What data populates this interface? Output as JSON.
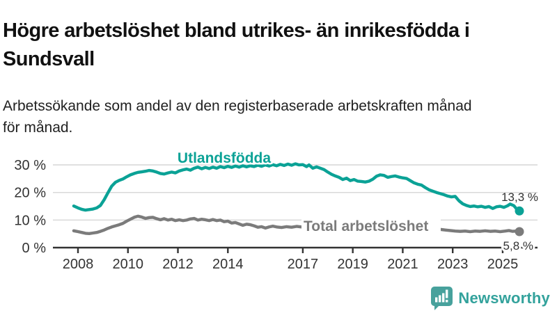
{
  "header": {
    "title": "Högre arbetslöshet bland utrikes- än inrikesfödda i\nSundsvall",
    "subtitle": "Arbetssökande som andel av den registerbaserade arbetskraften månad\nför månad."
  },
  "footer": {
    "brand": "Newsworthy",
    "logo_icon": "bar-chart-speech-bubble-icon"
  },
  "colors": {
    "accent_teal": "#0ba296",
    "series_gray": "#7b7b7b",
    "axis_text": "#333333",
    "gridline": "#d9d9d9",
    "logo_teal": "#47a19c",
    "end_label_text": "#333333"
  },
  "chart_data": {
    "type": "line",
    "grid": "horizontal",
    "legend_position": "inline-labels",
    "xlabel": "",
    "ylabel": "",
    "ylim": [
      0,
      33
    ],
    "xlim": [
      2007.7,
      2026.2
    ],
    "y_ticks": [
      {
        "value": 0,
        "label": "0 %"
      },
      {
        "value": 10,
        "label": "10 %"
      },
      {
        "value": 20,
        "label": "20 %"
      },
      {
        "value": 30,
        "label": "30 %"
      }
    ],
    "x_ticks": [
      {
        "value": 2008,
        "label": "2008"
      },
      {
        "value": 2010,
        "label": "2010"
      },
      {
        "value": 2012,
        "label": "2012"
      },
      {
        "value": 2014,
        "label": "2014"
      },
      {
        "value": 2017,
        "label": "2017"
      },
      {
        "value": 2019,
        "label": "2019"
      },
      {
        "value": 2021,
        "label": "2021"
      },
      {
        "value": 2023,
        "label": "2023"
      },
      {
        "value": 2025,
        "label": "2025"
      }
    ],
    "series": [
      {
        "name": "Utlandsfödda",
        "color": "#0ba296",
        "end_label": "13,3 %",
        "end_value": 13.3,
        "points": [
          [
            2007.83,
            15.1
          ],
          [
            2008.0,
            14.4
          ],
          [
            2008.15,
            13.9
          ],
          [
            2008.3,
            13.6
          ],
          [
            2008.45,
            13.8
          ],
          [
            2008.6,
            14.0
          ],
          [
            2008.75,
            14.4
          ],
          [
            2008.9,
            15.3
          ],
          [
            2009.05,
            17.4
          ],
          [
            2009.2,
            19.9
          ],
          [
            2009.35,
            22.3
          ],
          [
            2009.5,
            23.7
          ],
          [
            2009.65,
            24.4
          ],
          [
            2009.8,
            24.9
          ],
          [
            2009.95,
            25.7
          ],
          [
            2010.1,
            26.4
          ],
          [
            2010.25,
            26.9
          ],
          [
            2010.4,
            27.3
          ],
          [
            2010.55,
            27.5
          ],
          [
            2010.7,
            27.7
          ],
          [
            2010.85,
            28.0
          ],
          [
            2011.0,
            27.8
          ],
          [
            2011.15,
            27.4
          ],
          [
            2011.3,
            26.9
          ],
          [
            2011.45,
            26.7
          ],
          [
            2011.6,
            27.1
          ],
          [
            2011.75,
            27.4
          ],
          [
            2011.9,
            27.1
          ],
          [
            2012.05,
            27.8
          ],
          [
            2012.2,
            28.2
          ],
          [
            2012.35,
            28.5
          ],
          [
            2012.5,
            28.1
          ],
          [
            2012.65,
            28.8
          ],
          [
            2012.8,
            29.2
          ],
          [
            2012.95,
            28.6
          ],
          [
            2013.1,
            29.1
          ],
          [
            2013.25,
            28.7
          ],
          [
            2013.4,
            29.2
          ],
          [
            2013.55,
            28.8
          ],
          [
            2013.7,
            29.4
          ],
          [
            2013.85,
            29.0
          ],
          [
            2014.0,
            29.5
          ],
          [
            2014.15,
            29.1
          ],
          [
            2014.3,
            29.6
          ],
          [
            2014.45,
            29.2
          ],
          [
            2014.6,
            29.7
          ],
          [
            2014.75,
            29.3
          ],
          [
            2014.9,
            29.7
          ],
          [
            2015.05,
            29.4
          ],
          [
            2015.2,
            29.9
          ],
          [
            2015.35,
            29.5
          ],
          [
            2015.5,
            30.0
          ],
          [
            2015.65,
            29.6
          ],
          [
            2015.8,
            30.1
          ],
          [
            2015.95,
            29.7
          ],
          [
            2016.1,
            30.2
          ],
          [
            2016.25,
            29.8
          ],
          [
            2016.4,
            30.3
          ],
          [
            2016.55,
            29.9
          ],
          [
            2016.7,
            30.4
          ],
          [
            2016.85,
            30.0
          ],
          [
            2017.0,
            30.1
          ],
          [
            2017.15,
            29.4
          ],
          [
            2017.25,
            30.0
          ],
          [
            2017.4,
            28.8
          ],
          [
            2017.55,
            29.3
          ],
          [
            2017.7,
            28.8
          ],
          [
            2017.85,
            28.3
          ],
          [
            2018.0,
            27.4
          ],
          [
            2018.15,
            26.6
          ],
          [
            2018.3,
            26.0
          ],
          [
            2018.45,
            25.5
          ],
          [
            2018.6,
            24.7
          ],
          [
            2018.75,
            25.2
          ],
          [
            2018.9,
            24.3
          ],
          [
            2019.05,
            24.7
          ],
          [
            2019.2,
            24.1
          ],
          [
            2019.35,
            24.0
          ],
          [
            2019.5,
            23.8
          ],
          [
            2019.65,
            24.1
          ],
          [
            2019.8,
            24.8
          ],
          [
            2019.95,
            25.9
          ],
          [
            2020.1,
            26.4
          ],
          [
            2020.25,
            26.2
          ],
          [
            2020.4,
            25.5
          ],
          [
            2020.55,
            25.8
          ],
          [
            2020.7,
            26.0
          ],
          [
            2020.85,
            25.6
          ],
          [
            2021.0,
            25.3
          ],
          [
            2021.15,
            25.1
          ],
          [
            2021.3,
            24.3
          ],
          [
            2021.45,
            23.5
          ],
          [
            2021.6,
            23.0
          ],
          [
            2021.75,
            22.7
          ],
          [
            2021.9,
            21.8
          ],
          [
            2022.05,
            21.0
          ],
          [
            2022.2,
            20.5
          ],
          [
            2022.35,
            20.0
          ],
          [
            2022.5,
            19.6
          ],
          [
            2022.65,
            19.2
          ],
          [
            2022.8,
            18.7
          ],
          [
            2022.95,
            18.4
          ],
          [
            2023.1,
            18.6
          ],
          [
            2023.25,
            17.0
          ],
          [
            2023.4,
            15.9
          ],
          [
            2023.55,
            15.3
          ],
          [
            2023.7,
            14.9
          ],
          [
            2023.85,
            15.1
          ],
          [
            2024.0,
            14.8
          ],
          [
            2024.15,
            15.0
          ],
          [
            2024.3,
            14.6
          ],
          [
            2024.45,
            14.9
          ],
          [
            2024.6,
            14.2
          ],
          [
            2024.75,
            14.8
          ],
          [
            2024.9,
            15.0
          ],
          [
            2025.05,
            14.6
          ],
          [
            2025.2,
            15.2
          ],
          [
            2025.3,
            15.8
          ],
          [
            2025.45,
            15.2
          ],
          [
            2025.55,
            14.1
          ],
          [
            2025.67,
            13.3
          ]
        ]
      },
      {
        "name": "Total arbetslöshet",
        "color": "#7b7b7b",
        "end_label": "5,8 %",
        "end_value": 5.8,
        "points": [
          [
            2007.83,
            6.1
          ],
          [
            2008.0,
            5.8
          ],
          [
            2008.15,
            5.5
          ],
          [
            2008.3,
            5.2
          ],
          [
            2008.45,
            5.1
          ],
          [
            2008.6,
            5.3
          ],
          [
            2008.75,
            5.5
          ],
          [
            2008.9,
            5.9
          ],
          [
            2009.05,
            6.4
          ],
          [
            2009.2,
            7.0
          ],
          [
            2009.35,
            7.5
          ],
          [
            2009.5,
            7.9
          ],
          [
            2009.65,
            8.3
          ],
          [
            2009.8,
            8.8
          ],
          [
            2009.95,
            9.6
          ],
          [
            2010.1,
            10.3
          ],
          [
            2010.25,
            11.0
          ],
          [
            2010.4,
            11.4
          ],
          [
            2010.55,
            11.1
          ],
          [
            2010.7,
            10.6
          ],
          [
            2010.85,
            10.9
          ],
          [
            2011.0,
            11.0
          ],
          [
            2011.15,
            10.5
          ],
          [
            2011.3,
            10.1
          ],
          [
            2011.45,
            10.5
          ],
          [
            2011.6,
            10.0
          ],
          [
            2011.75,
            10.3
          ],
          [
            2011.9,
            9.8
          ],
          [
            2012.05,
            10.1
          ],
          [
            2012.2,
            9.8
          ],
          [
            2012.35,
            10.0
          ],
          [
            2012.5,
            10.4
          ],
          [
            2012.65,
            10.6
          ],
          [
            2012.8,
            10.0
          ],
          [
            2012.95,
            10.3
          ],
          [
            2013.1,
            10.1
          ],
          [
            2013.25,
            9.8
          ],
          [
            2013.4,
            10.2
          ],
          [
            2013.55,
            9.8
          ],
          [
            2013.7,
            10.0
          ],
          [
            2013.85,
            9.4
          ],
          [
            2014.0,
            9.6
          ],
          [
            2014.15,
            8.9
          ],
          [
            2014.3,
            9.1
          ],
          [
            2014.45,
            8.6
          ],
          [
            2014.6,
            8.1
          ],
          [
            2014.75,
            8.5
          ],
          [
            2014.9,
            8.3
          ],
          [
            2015.05,
            7.9
          ],
          [
            2015.2,
            7.4
          ],
          [
            2015.35,
            7.6
          ],
          [
            2015.5,
            7.1
          ],
          [
            2015.65,
            7.5
          ],
          [
            2015.8,
            7.8
          ],
          [
            2015.95,
            7.5
          ],
          [
            2016.15,
            7.3
          ],
          [
            2016.35,
            7.6
          ],
          [
            2016.55,
            7.4
          ],
          [
            2016.75,
            7.7
          ],
          [
            2016.95,
            7.5
          ],
          [
            2017.2,
            7.2
          ],
          [
            2017.5,
            7.0
          ],
          [
            2017.8,
            6.9
          ],
          [
            2018.1,
            6.7
          ],
          [
            2018.4,
            6.6
          ],
          [
            2018.7,
            6.5
          ],
          [
            2019.0,
            6.4
          ],
          [
            2019.3,
            6.5
          ],
          [
            2019.6,
            6.7
          ],
          [
            2019.9,
            7.1
          ],
          [
            2020.2,
            7.6
          ],
          [
            2020.5,
            7.8
          ],
          [
            2020.8,
            7.5
          ],
          [
            2021.1,
            7.2
          ],
          [
            2021.4,
            7.0
          ],
          [
            2021.7,
            6.8
          ],
          [
            2022.0,
            6.7
          ],
          [
            2022.3,
            6.8
          ],
          [
            2022.5,
            6.6
          ],
          [
            2022.7,
            6.4
          ],
          [
            2022.9,
            6.2
          ],
          [
            2023.1,
            6.0
          ],
          [
            2023.3,
            5.9
          ],
          [
            2023.5,
            6.0
          ],
          [
            2023.7,
            5.8
          ],
          [
            2023.9,
            6.0
          ],
          [
            2024.1,
            5.9
          ],
          [
            2024.3,
            6.1
          ],
          [
            2024.5,
            5.9
          ],
          [
            2024.7,
            6.0
          ],
          [
            2024.9,
            5.8
          ],
          [
            2025.1,
            6.0
          ],
          [
            2025.25,
            6.2
          ],
          [
            2025.4,
            5.9
          ],
          [
            2025.55,
            6.0
          ],
          [
            2025.67,
            5.8
          ]
        ]
      }
    ]
  }
}
